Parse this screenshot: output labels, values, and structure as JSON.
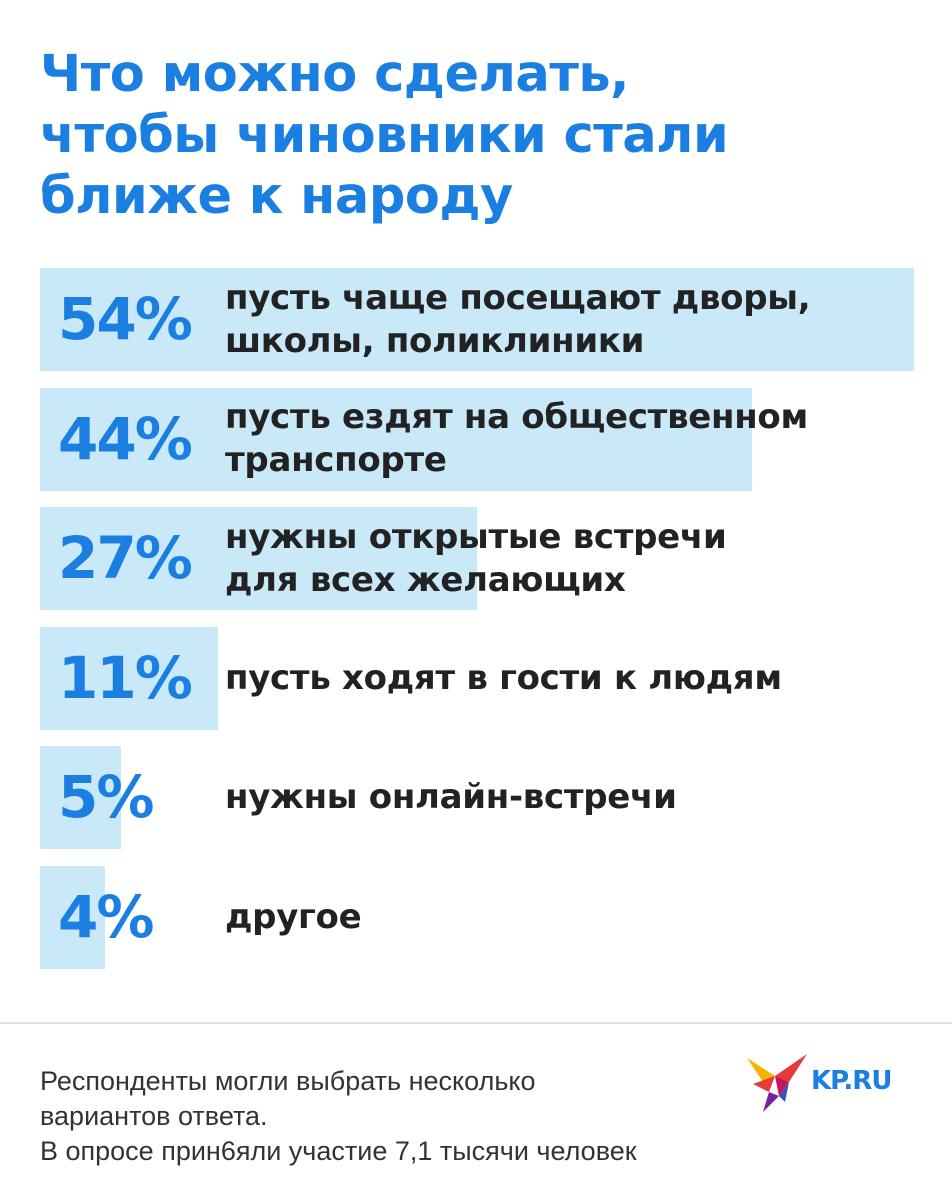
{
  "title": {
    "lines": [
      "Что можно сделать,",
      "чтобы чиновники стали",
      "ближе к народу"
    ]
  },
  "chart_data": {
    "type": "bar",
    "orientation": "horizontal",
    "unit": "%",
    "bar_color": "#c9e8f8",
    "accent_color": "#1a7fe0",
    "categories": [
      "пусть чаще посещают дворы, школы, поликлиники",
      "пусть ездят на общественном транспорте",
      "нужны открытые встречи для всех желающих",
      "пусть ходят в гости к людям",
      "нужны онлайн-встречи",
      "другое"
    ],
    "values": [
      54,
      44,
      27,
      11,
      5,
      4
    ],
    "items": [
      {
        "pct_label": "54%",
        "label_lines": [
          "пусть чаще посещают дворы,",
          "школы, поликлиники"
        ]
      },
      {
        "pct_label": "44%",
        "label_lines": [
          "пусть ездят на общественном",
          "транспорте"
        ]
      },
      {
        "pct_label": "27%",
        "label_lines": [
          "нужны открытые встречи",
          "для всех желающих"
        ]
      },
      {
        "pct_label": "11%",
        "label_lines": [
          "пусть ходят в гости к людям"
        ]
      },
      {
        "pct_label": "5%",
        "label_lines": [
          "нужны онлайн-встречи"
        ]
      },
      {
        "pct_label": "4%",
        "label_lines": [
          "другое"
        ]
      }
    ]
  },
  "footnote": {
    "lines": [
      "Респонденты могли выбрать несколько",
      "вариантов ответа.",
      "В опросе прин6яли участие 7,1 тысячи человек"
    ]
  },
  "logo": {
    "text": "KP.RU",
    "icon": "kp-bird-logo-icon"
  }
}
